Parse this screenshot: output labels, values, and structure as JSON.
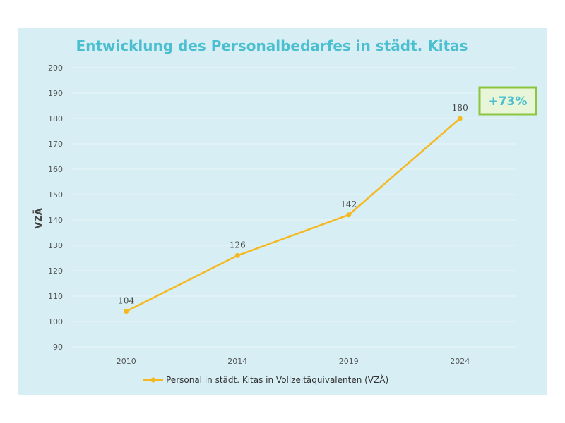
{
  "chart_data": {
    "type": "line",
    "title": "Entwicklung des Personalbedarfes in städt. Kitas",
    "xlabel": "",
    "ylabel": "VZÄ",
    "categories": [
      "2010",
      "2014",
      "2019",
      "2024"
    ],
    "series": [
      {
        "name": "Personal in städt. Kitas in Vollzeitäquivalenten (VZÄ)",
        "values": [
          104,
          126,
          142,
          180
        ]
      }
    ],
    "data_labels": [
      "104",
      "126",
      "142",
      "180"
    ],
    "ylim": [
      90,
      200
    ],
    "yticks": [
      90,
      100,
      110,
      120,
      130,
      140,
      150,
      160,
      170,
      180,
      190,
      200
    ],
    "grid": true,
    "legend": "bottom",
    "annotation": {
      "text": "+73%"
    },
    "colors": {
      "line": "#f5b820",
      "background": "#d7eef4",
      "grid": "#eaf6f9",
      "title": "#4bbfcf",
      "annotation_border": "#8cc63f",
      "annotation_fill": "#e8f5d8"
    }
  }
}
